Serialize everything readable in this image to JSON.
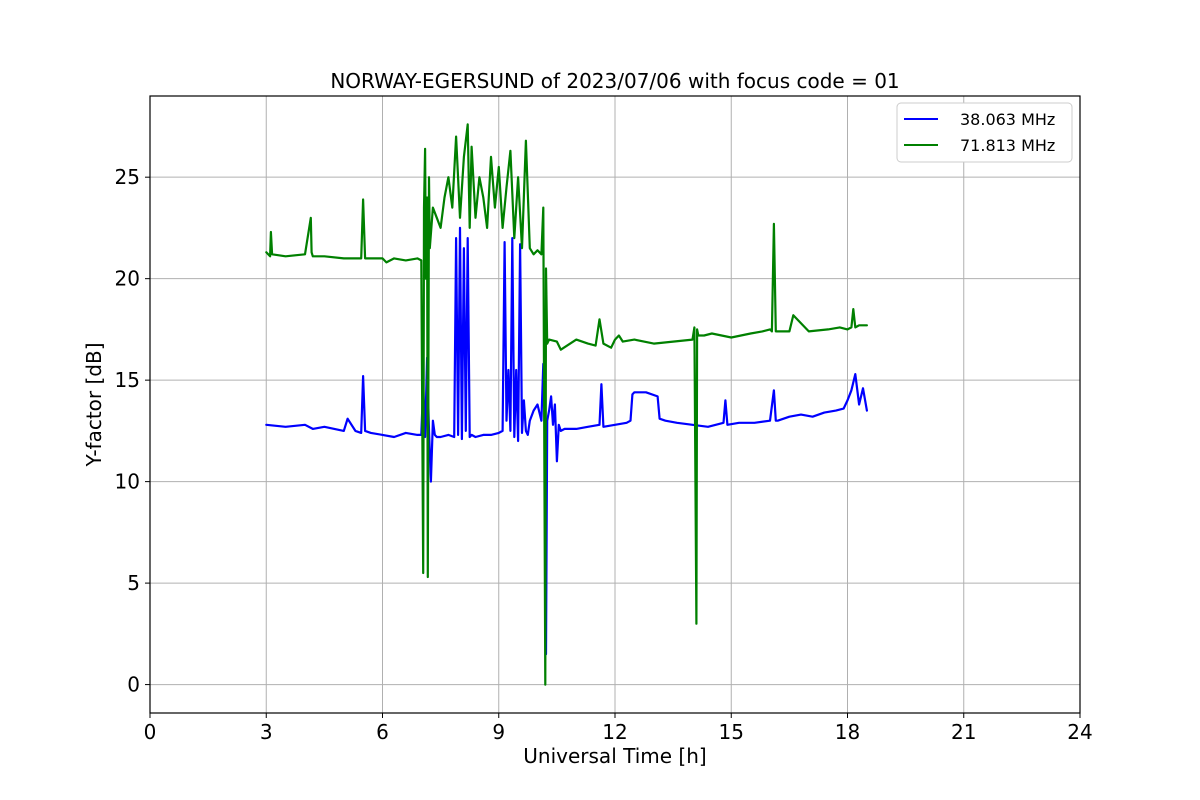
{
  "chart_data": {
    "type": "line",
    "title": "NORWAY-EGERSUND of 2023/07/06 with focus code = 01",
    "xlabel": "Universal Time [h]",
    "ylabel": "Y-factor [dB]",
    "xlim": [
      0,
      24
    ],
    "ylim": [
      -1.4,
      29
    ],
    "xticks": [
      0,
      3,
      6,
      9,
      12,
      15,
      18,
      21,
      24
    ],
    "xtick_labels": [
      "0",
      "3",
      "6",
      "9",
      "12",
      "15",
      "18",
      "21",
      "24"
    ],
    "yticks": [
      0,
      5,
      10,
      15,
      20,
      25
    ],
    "ytick_labels": [
      "0",
      "5",
      "10",
      "15",
      "20",
      "25"
    ],
    "grid": true,
    "legend_position": "top-right",
    "series": [
      {
        "name": "38.063 MHz",
        "color": "#0000ff",
        "x": [
          3.0,
          3.5,
          4.0,
          4.2,
          4.5,
          5.0,
          5.1,
          5.3,
          5.45,
          5.5,
          5.55,
          5.7,
          6.0,
          6.3,
          6.6,
          6.9,
          7.0,
          7.05,
          7.1,
          7.15,
          7.2,
          7.25,
          7.3,
          7.35,
          7.4,
          7.5,
          7.7,
          7.85,
          7.9,
          7.95,
          8.0,
          8.05,
          8.1,
          8.15,
          8.2,
          8.25,
          8.3,
          8.4,
          8.6,
          8.8,
          9.0,
          9.1,
          9.15,
          9.2,
          9.25,
          9.3,
          9.35,
          9.4,
          9.45,
          9.5,
          9.55,
          9.6,
          9.65,
          9.7,
          9.75,
          9.8,
          9.9,
          10.0,
          10.1,
          10.15,
          10.2,
          10.22,
          10.25,
          10.3,
          10.35,
          10.4,
          10.45,
          10.5,
          10.55,
          10.6,
          10.7,
          11.0,
          11.3,
          11.6,
          11.65,
          11.7,
          12.0,
          12.3,
          12.4,
          12.45,
          12.5,
          12.8,
          13.1,
          13.15,
          13.3,
          13.6,
          14.0,
          14.4,
          14.8,
          14.85,
          14.9,
          15.2,
          15.6,
          16.0,
          16.1,
          16.15,
          16.2,
          16.5,
          16.8,
          17.1,
          17.4,
          17.7,
          17.9,
          18.0,
          18.1,
          18.2,
          18.3,
          18.4,
          18.5
        ],
        "y": [
          12.8,
          12.7,
          12.8,
          12.6,
          12.7,
          12.5,
          13.1,
          12.5,
          12.4,
          15.2,
          12.5,
          12.4,
          12.3,
          12.2,
          12.4,
          12.3,
          12.3,
          14.8,
          12.2,
          16.1,
          12.5,
          10.0,
          13.0,
          12.3,
          12.2,
          12.2,
          12.3,
          12.2,
          22.0,
          12.3,
          22.5,
          12.1,
          21.5,
          12.5,
          22.0,
          12.2,
          12.3,
          12.2,
          12.3,
          12.3,
          12.4,
          12.5,
          21.8,
          13.0,
          15.5,
          12.5,
          22.0,
          12.2,
          15.5,
          12.0,
          21.7,
          12.4,
          14.0,
          12.5,
          12.3,
          13.0,
          13.5,
          13.8,
          13.0,
          15.8,
          12.8,
          1.5,
          13.0,
          13.5,
          14.2,
          12.8,
          13.8,
          11.0,
          12.8,
          12.5,
          12.6,
          12.6,
          12.7,
          12.8,
          14.8,
          12.7,
          12.8,
          12.9,
          13.0,
          14.3,
          14.4,
          14.4,
          14.2,
          13.1,
          13.0,
          12.9,
          12.8,
          12.7,
          12.9,
          14.0,
          12.8,
          12.9,
          12.9,
          13.0,
          14.5,
          13.0,
          13.0,
          13.2,
          13.3,
          13.2,
          13.4,
          13.5,
          13.6,
          14.0,
          14.5,
          15.3,
          13.8,
          14.6,
          13.5
        ],
        "line_width": 2.2
      },
      {
        "name": "71.813 MHz",
        "color": "#008000",
        "x": [
          3.0,
          3.1,
          3.12,
          3.15,
          3.5,
          4.0,
          4.15,
          4.17,
          4.2,
          4.5,
          5.0,
          5.45,
          5.5,
          5.55,
          6.0,
          6.1,
          6.3,
          6.6,
          6.9,
          7.0,
          7.05,
          7.07,
          7.1,
          7.12,
          7.15,
          7.17,
          7.2,
          7.22,
          7.3,
          7.4,
          7.5,
          7.6,
          7.7,
          7.8,
          7.9,
          8.0,
          8.1,
          8.2,
          8.25,
          8.3,
          8.4,
          8.5,
          8.6,
          8.7,
          8.8,
          8.9,
          9.0,
          9.1,
          9.2,
          9.3,
          9.4,
          9.5,
          9.6,
          9.7,
          9.8,
          9.9,
          10.0,
          10.1,
          10.15,
          10.2,
          10.22,
          10.25,
          10.3,
          10.5,
          10.6,
          11.0,
          11.3,
          11.5,
          11.6,
          11.7,
          11.9,
          12.0,
          12.1,
          12.2,
          12.5,
          13.0,
          13.5,
          14.0,
          14.05,
          14.1,
          14.12,
          14.15,
          14.3,
          14.5,
          15.0,
          15.5,
          15.8,
          16.0,
          16.05,
          16.1,
          16.15,
          16.5,
          16.6,
          17.0,
          17.5,
          17.8,
          18.0,
          18.1,
          18.15,
          18.2,
          18.3,
          18.5
        ],
        "y": [
          21.3,
          21.1,
          22.3,
          21.2,
          21.1,
          21.2,
          23.0,
          21.3,
          21.1,
          21.1,
          21.0,
          21.0,
          23.9,
          21.0,
          21.0,
          20.8,
          21.0,
          20.9,
          21.0,
          20.9,
          5.5,
          23.5,
          26.4,
          20.0,
          24.0,
          5.3,
          25.0,
          21.5,
          23.5,
          23.0,
          22.5,
          24.0,
          25.0,
          23.5,
          27.0,
          23.0,
          26.0,
          27.6,
          22.5,
          26.5,
          23.0,
          25.0,
          24.0,
          22.5,
          26.0,
          23.5,
          25.5,
          22.5,
          24.5,
          26.3,
          22.0,
          25.0,
          21.5,
          26.8,
          21.5,
          21.2,
          21.4,
          21.2,
          23.5,
          0.0,
          20.5,
          16.8,
          17.0,
          16.9,
          16.5,
          17.0,
          16.8,
          16.7,
          18.0,
          16.8,
          16.6,
          17.0,
          17.2,
          16.9,
          17.0,
          16.8,
          16.9,
          17.0,
          17.6,
          3.0,
          17.5,
          17.2,
          17.2,
          17.3,
          17.1,
          17.3,
          17.4,
          17.5,
          17.4,
          22.7,
          17.4,
          17.4,
          18.2,
          17.4,
          17.5,
          17.6,
          17.5,
          17.6,
          18.5,
          17.6,
          17.7,
          17.7
        ],
        "line_width": 2.2
      }
    ]
  }
}
